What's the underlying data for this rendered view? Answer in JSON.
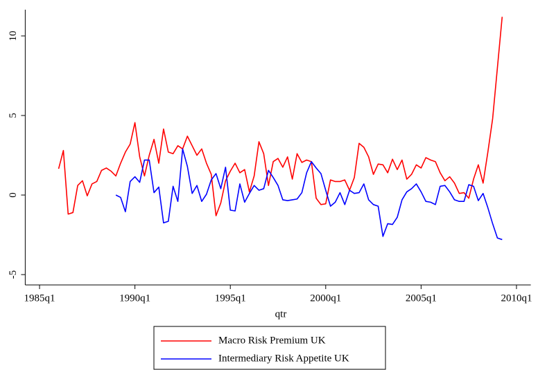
{
  "chart_data": {
    "type": "line",
    "x_label": "qtr",
    "x": [
      "1986q1",
      "1986q2",
      "1986q3",
      "1986q4",
      "1987q1",
      "1987q2",
      "1987q3",
      "1987q4",
      "1988q1",
      "1988q2",
      "1988q3",
      "1988q4",
      "1989q1",
      "1989q2",
      "1989q3",
      "1989q4",
      "1990q1",
      "1990q2",
      "1990q3",
      "1990q4",
      "1991q1",
      "1991q2",
      "1991q3",
      "1991q4",
      "1992q1",
      "1992q2",
      "1992q3",
      "1992q4",
      "1993q1",
      "1993q2",
      "1993q3",
      "1993q4",
      "1994q1",
      "1994q2",
      "1994q3",
      "1994q4",
      "1995q1",
      "1995q2",
      "1995q3",
      "1995q4",
      "1996q1",
      "1996q2",
      "1996q3",
      "1996q4",
      "1997q1",
      "1997q2",
      "1997q3",
      "1997q4",
      "1998q1",
      "1998q2",
      "1998q3",
      "1998q4",
      "1999q1",
      "1999q2",
      "1999q3",
      "1999q4",
      "2000q1",
      "2000q2",
      "2000q3",
      "2000q4",
      "2001q1",
      "2001q2",
      "2001q3",
      "2001q4",
      "2002q1",
      "2002q2",
      "2002q3",
      "2002q4",
      "2003q1",
      "2003q2",
      "2003q3",
      "2003q4",
      "2004q1",
      "2004q2",
      "2004q3",
      "2004q4",
      "2005q1",
      "2005q2",
      "2005q3",
      "2005q4",
      "2006q1",
      "2006q2",
      "2006q3",
      "2006q4",
      "2007q1",
      "2007q2",
      "2007q3",
      "2007q4",
      "2008q1",
      "2008q2",
      "2008q3",
      "2008q4",
      "2009q1",
      "2009q2"
    ],
    "series": [
      {
        "name": "Macro Risk Premium UK",
        "color": "#ff0000",
        "values": [
          1.65,
          2.8,
          -1.2,
          -1.1,
          0.6,
          0.9,
          -0.05,
          0.7,
          0.85,
          1.55,
          1.7,
          1.5,
          1.2,
          2.0,
          2.7,
          3.2,
          4.55,
          2.4,
          1.2,
          2.5,
          3.5,
          2.0,
          4.15,
          2.7,
          2.6,
          3.1,
          2.9,
          3.7,
          3.1,
          2.5,
          2.9,
          2.0,
          1.3,
          -1.3,
          -0.5,
          0.9,
          1.5,
          2.0,
          1.4,
          1.6,
          0.2,
          1.2,
          3.35,
          2.6,
          0.6,
          2.1,
          2.3,
          1.75,
          2.4,
          1.0,
          2.6,
          2.05,
          2.2,
          2.1,
          -0.2,
          -0.6,
          -0.55,
          0.95,
          0.85,
          0.85,
          0.95,
          0.3,
          1.1,
          3.25,
          3.0,
          2.4,
          1.3,
          1.95,
          1.9,
          1.4,
          2.25,
          1.6,
          2.2,
          1.0,
          1.3,
          1.9,
          1.7,
          2.35,
          2.2,
          2.1,
          1.4,
          0.9,
          1.15,
          0.75,
          0.1,
          0.15,
          -0.2,
          1.0,
          1.9,
          0.75,
          2.7,
          4.8,
          8.0,
          11.2
        ]
      },
      {
        "name": "Intermediary Risk Appetite UK",
        "color": "#0000ff",
        "values": [
          null,
          null,
          null,
          null,
          null,
          null,
          null,
          null,
          null,
          null,
          null,
          null,
          0.0,
          -0.15,
          -1.05,
          0.85,
          1.15,
          0.8,
          2.2,
          2.2,
          0.15,
          0.5,
          -1.75,
          -1.65,
          0.55,
          -0.4,
          2.9,
          1.8,
          0.1,
          0.6,
          -0.4,
          0.05,
          0.95,
          1.35,
          0.4,
          1.75,
          -0.95,
          -1.0,
          0.7,
          -0.45,
          0.1,
          0.6,
          0.3,
          0.4,
          1.55,
          1.1,
          0.6,
          -0.3,
          -0.35,
          -0.3,
          -0.25,
          0.15,
          1.4,
          2.1,
          1.7,
          1.35,
          0.3,
          -0.7,
          -0.45,
          0.15,
          -0.6,
          0.3,
          0.1,
          0.15,
          0.7,
          -0.3,
          -0.6,
          -0.7,
          -2.6,
          -1.8,
          -1.85,
          -1.4,
          -0.3,
          0.2,
          0.4,
          0.7,
          0.2,
          -0.4,
          -0.45,
          -0.6,
          0.55,
          0.6,
          0.2,
          -0.3,
          -0.4,
          -0.4,
          0.65,
          0.55,
          -0.35,
          0.1,
          -0.8,
          -1.8,
          -2.7,
          -2.8
        ]
      }
    ],
    "xlim": [
      "1984q2",
      "2010q4"
    ],
    "xticks": [
      "1985q1",
      "1990q1",
      "1995q1",
      "2000q1",
      "2005q1",
      "2010q1"
    ],
    "ylim": [
      -5.65,
      11.65
    ],
    "yticks": [
      -5,
      0,
      5,
      10
    ],
    "grid": false,
    "legend": "bottom"
  }
}
